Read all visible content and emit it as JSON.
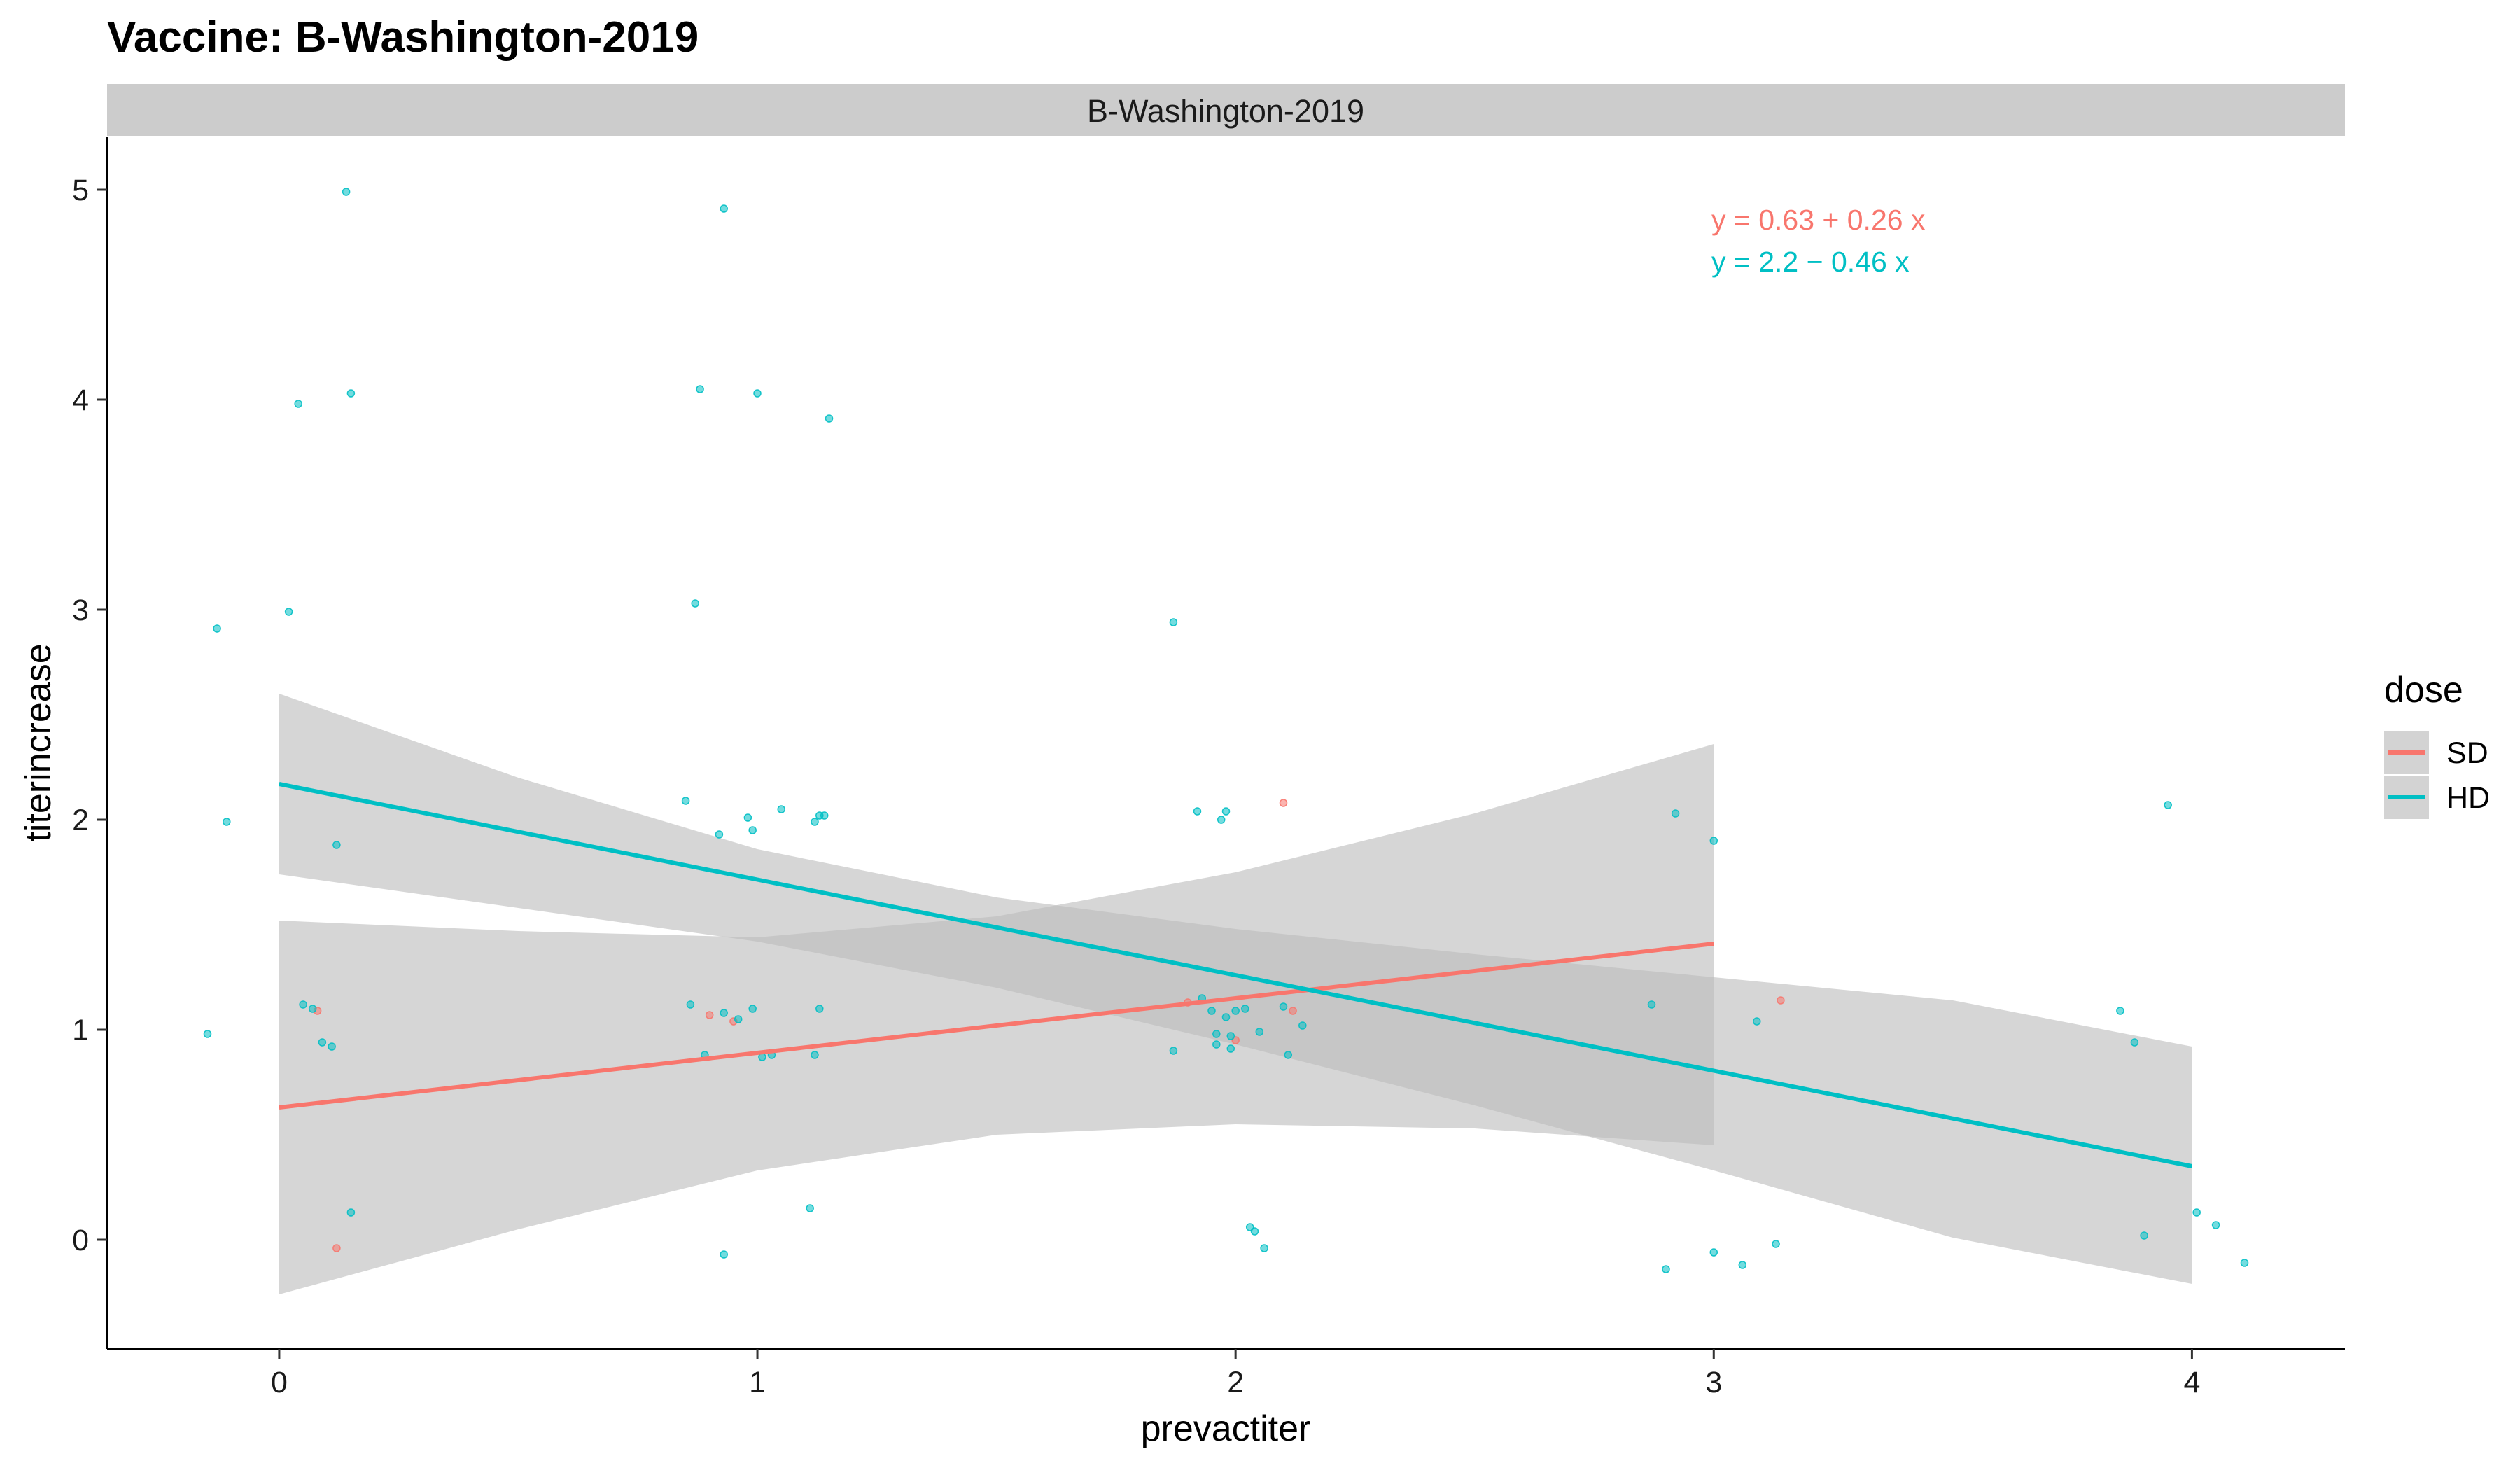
{
  "chart_data": {
    "type": "scatter",
    "title": "Vaccine: B-Washington-2019",
    "facet_label": "B-Washington-2019",
    "xlabel": "prevactiter",
    "ylabel": "titerincrease",
    "xlim": [
      -0.36,
      4.32
    ],
    "ylim": [
      -0.52,
      5.25
    ],
    "x_ticks": [
      0,
      1,
      2,
      3,
      4
    ],
    "y_ticks": [
      0,
      1,
      2,
      3,
      4,
      5
    ],
    "grid": false,
    "legend": {
      "title": "dose",
      "position": "right",
      "entries": [
        "SD",
        "HD"
      ]
    },
    "colors": {
      "SD": "#F8766D",
      "HD": "#00BFC4",
      "ribbon": "#bdbdbd",
      "strip": "#cccccc"
    },
    "series": [
      {
        "name": "SD",
        "points": [
          [
            0.08,
            1.09
          ],
          [
            0.12,
            -0.04
          ],
          [
            0.95,
            1.04
          ],
          [
            2.0,
            0.95
          ],
          [
            2.1,
            2.08
          ],
          [
            2.12,
            1.09
          ],
          [
            3.14,
            1.14
          ],
          [
            1.9,
            1.13
          ],
          [
            0.9,
            1.07
          ]
        ],
        "fit": {
          "x": [
            0,
            3
          ],
          "intercept": 0.63,
          "slope": 0.26
        },
        "ci": [
          {
            "x": 0.0,
            "lower": -0.26,
            "upper": 1.52
          },
          {
            "x": 0.5,
            "lower": 0.05,
            "upper": 1.47
          },
          {
            "x": 1.0,
            "lower": 0.33,
            "upper": 1.44
          },
          {
            "x": 1.5,
            "lower": 0.5,
            "upper": 1.54
          },
          {
            "x": 2.0,
            "lower": 0.55,
            "upper": 1.75
          },
          {
            "x": 2.5,
            "lower": 0.53,
            "upper": 2.03
          },
          {
            "x": 3.0,
            "lower": 0.45,
            "upper": 2.36
          }
        ],
        "equation": "y = 0.63 + 0.26 x"
      },
      {
        "name": "HD",
        "points": [
          [
            -0.15,
            0.98
          ],
          [
            -0.13,
            2.91
          ],
          [
            -0.11,
            1.99
          ],
          [
            0.02,
            2.99
          ],
          [
            0.04,
            3.98
          ],
          [
            0.05,
            1.12
          ],
          [
            0.07,
            1.1
          ],
          [
            0.09,
            0.94
          ],
          [
            0.11,
            0.92
          ],
          [
            0.12,
            1.88
          ],
          [
            0.14,
            4.99
          ],
          [
            0.15,
            4.03
          ],
          [
            0.15,
            0.13
          ],
          [
            0.85,
            2.09
          ],
          [
            0.86,
            1.12
          ],
          [
            0.87,
            3.03
          ],
          [
            0.88,
            4.05
          ],
          [
            0.89,
            0.88
          ],
          [
            0.92,
            1.93
          ],
          [
            0.93,
            4.91
          ],
          [
            0.93,
            1.08
          ],
          [
            0.93,
            -0.07
          ],
          [
            0.96,
            1.05
          ],
          [
            0.98,
            2.01
          ],
          [
            0.99,
            1.95
          ],
          [
            0.99,
            1.1
          ],
          [
            1.0,
            4.03
          ],
          [
            1.01,
            0.87
          ],
          [
            1.03,
            0.88
          ],
          [
            1.05,
            2.05
          ],
          [
            1.11,
            0.15
          ],
          [
            1.12,
            1.99
          ],
          [
            1.12,
            0.88
          ],
          [
            1.13,
            2.02
          ],
          [
            1.13,
            1.1
          ],
          [
            1.14,
            2.02
          ],
          [
            1.15,
            3.91
          ],
          [
            1.87,
            2.94
          ],
          [
            1.87,
            0.9
          ],
          [
            1.92,
            2.04
          ],
          [
            1.93,
            1.15
          ],
          [
            1.95,
            1.09
          ],
          [
            1.96,
            0.98
          ],
          [
            1.96,
            0.93
          ],
          [
            1.97,
            2.0
          ],
          [
            1.98,
            2.04
          ],
          [
            1.98,
            1.06
          ],
          [
            1.99,
            0.91
          ],
          [
            1.99,
            0.97
          ],
          [
            2.0,
            1.09
          ],
          [
            2.02,
            1.1
          ],
          [
            2.03,
            0.06
          ],
          [
            2.04,
            0.04
          ],
          [
            2.05,
            0.99
          ],
          [
            2.06,
            -0.04
          ],
          [
            2.1,
            1.11
          ],
          [
            2.11,
            0.88
          ],
          [
            2.14,
            1.02
          ],
          [
            2.87,
            1.12
          ],
          [
            2.9,
            -0.14
          ],
          [
            2.92,
            2.03
          ],
          [
            3.0,
            1.9
          ],
          [
            3.0,
            -0.06
          ],
          [
            3.06,
            -0.12
          ],
          [
            3.09,
            1.04
          ],
          [
            3.13,
            -0.02
          ],
          [
            3.85,
            1.09
          ],
          [
            3.88,
            0.94
          ],
          [
            3.9,
            0.02
          ],
          [
            3.95,
            2.07
          ],
          [
            4.01,
            0.13
          ],
          [
            4.05,
            0.07
          ],
          [
            4.11,
            -0.11
          ]
        ],
        "fit": {
          "x": [
            0,
            4
          ],
          "intercept": 2.17,
          "slope": -0.455
        },
        "ci": [
          {
            "x": 0.0,
            "lower": 1.74,
            "upper": 2.6
          },
          {
            "x": 0.5,
            "lower": 1.58,
            "upper": 2.2
          },
          {
            "x": 1.0,
            "lower": 1.42,
            "upper": 1.86
          },
          {
            "x": 1.5,
            "lower": 1.2,
            "upper": 1.63
          },
          {
            "x": 2.0,
            "lower": 0.93,
            "upper": 1.48
          },
          {
            "x": 2.5,
            "lower": 0.64,
            "upper": 1.36
          },
          {
            "x": 3.0,
            "lower": 0.33,
            "upper": 1.25
          },
          {
            "x": 3.5,
            "lower": 0.01,
            "upper": 1.14
          },
          {
            "x": 4.0,
            "lower": -0.21,
            "upper": 0.92
          }
        ],
        "equation": "y = 2.2 − 0.46 x"
      }
    ]
  }
}
